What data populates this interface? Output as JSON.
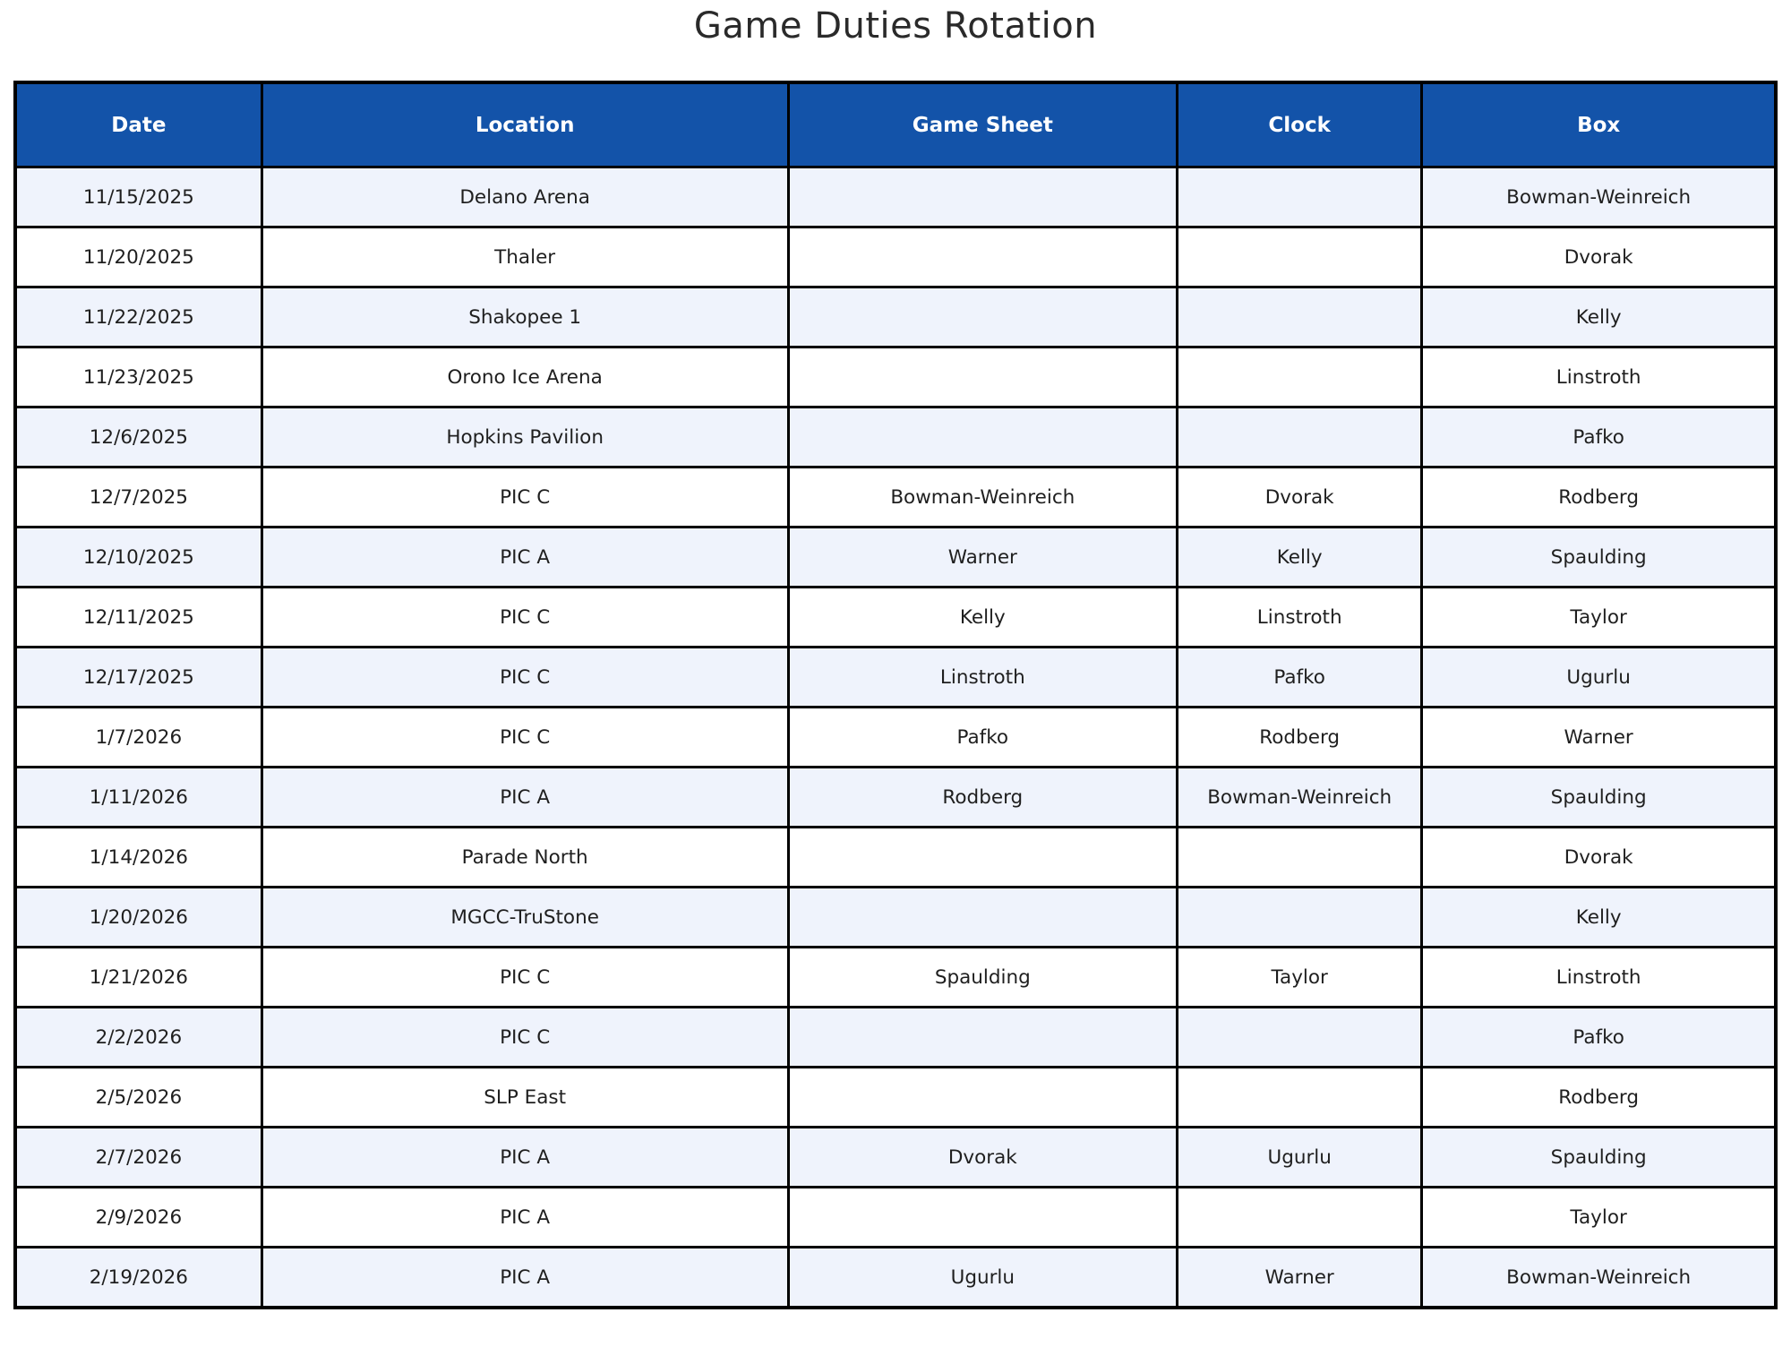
{
  "chart_data": {
    "type": "table",
    "title": "Game Duties Rotation",
    "columns": [
      "Date",
      "Location",
      "Game Sheet",
      "Clock",
      "Box"
    ],
    "column_width_pct": [
      14.0,
      29.9,
      22.1,
      13.9,
      20.1
    ],
    "rows": [
      [
        "11/15/2025",
        "Delano Arena",
        "",
        "",
        "Bowman-Weinreich"
      ],
      [
        "11/20/2025",
        "Thaler",
        "",
        "",
        "Dvorak"
      ],
      [
        "11/22/2025",
        "Shakopee 1",
        "",
        "",
        "Kelly"
      ],
      [
        "11/23/2025",
        "Orono Ice Arena",
        "",
        "",
        "Linstroth"
      ],
      [
        "12/6/2025",
        "Hopkins Pavilion",
        "",
        "",
        "Pafko"
      ],
      [
        "12/7/2025",
        "PIC C",
        "Bowman-Weinreich",
        "Dvorak",
        "Rodberg"
      ],
      [
        "12/10/2025",
        "PIC A",
        "Warner",
        "Kelly",
        "Spaulding"
      ],
      [
        "12/11/2025",
        "PIC C",
        "Kelly",
        "Linstroth",
        "Taylor"
      ],
      [
        "12/17/2025",
        "PIC C",
        "Linstroth",
        "Pafko",
        "Ugurlu"
      ],
      [
        "1/7/2026",
        "PIC C",
        "Pafko",
        "Rodberg",
        "Warner"
      ],
      [
        "1/11/2026",
        "PIC A",
        "Rodberg",
        "Bowman-Weinreich",
        "Spaulding"
      ],
      [
        "1/14/2026",
        "Parade North",
        "",
        "",
        "Dvorak"
      ],
      [
        "1/20/2026",
        "MGCC-TruStone",
        "",
        "",
        "Kelly"
      ],
      [
        "1/21/2026",
        "PIC C",
        "Spaulding",
        "Taylor",
        "Linstroth"
      ],
      [
        "2/2/2026",
        "PIC C",
        "",
        "",
        "Pafko"
      ],
      [
        "2/5/2026",
        "SLP East",
        "",
        "",
        "Rodberg"
      ],
      [
        "2/7/2026",
        "PIC A",
        "Dvorak",
        "Ugurlu",
        "Spaulding"
      ],
      [
        "2/9/2026",
        "PIC A",
        "",
        "",
        "Taylor"
      ],
      [
        "2/19/2026",
        "PIC A",
        "Ugurlu",
        "Warner",
        "Bowman-Weinreich"
      ]
    ],
    "layout": {
      "grid": "on",
      "row_striping": "odd-rows-shaded",
      "text_align": "center"
    }
  },
  "colors": {
    "header_bg": "#1353A9",
    "header_text": "#FFFFFF",
    "row_bg": "#FFFFFF",
    "row_alt_bg": "#EFF3FC",
    "border": "#000000",
    "cell_text": "#1F1F1F",
    "title_text": "#2A2A2A"
  }
}
